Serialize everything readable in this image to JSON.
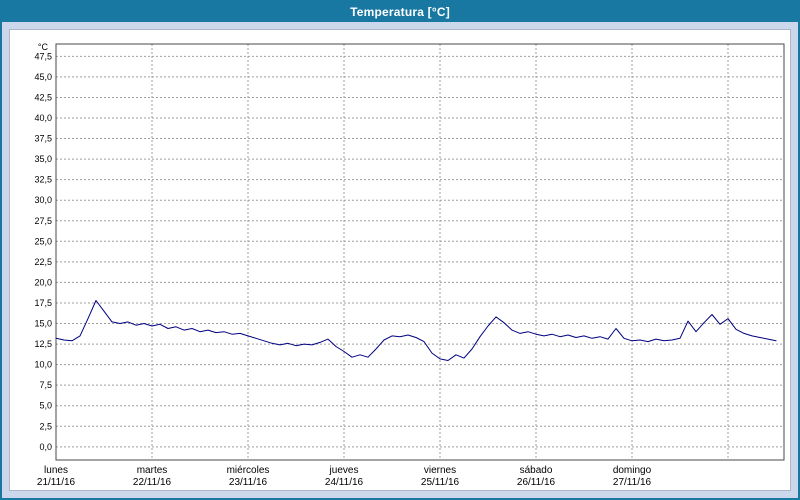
{
  "window": {
    "title": "Temperatura [°C]"
  },
  "colors": {
    "titlebar": "#1878a2",
    "frame_background": "#cbd7eb",
    "panel_background": "#ffffff",
    "grid": "#9f9f9f",
    "plot_border": "#4a4a4a",
    "line": "#00007f",
    "text": "#000000"
  },
  "chart_data": {
    "type": "line",
    "title": "Temperatura [°C]",
    "y_unit_label": "°C",
    "legend": "none",
    "grid": {
      "style": "dashed",
      "horizontal": true,
      "vertical": true
    },
    "y_axis": {
      "tick_min": 0,
      "tick_max": 47.5,
      "tick_step": 2.5,
      "ylim": [
        -1.6,
        49.0
      ],
      "decimal_separator": ","
    },
    "x_axis": {
      "day_length_hours": 24,
      "total_hours": 182,
      "days": [
        {
          "name": "lunes",
          "date": "21/11/16"
        },
        {
          "name": "martes",
          "date": "22/11/16"
        },
        {
          "name": "miércoles",
          "date": "23/11/16"
        },
        {
          "name": "jueves",
          "date": "24/11/16"
        },
        {
          "name": "viernes",
          "date": "25/11/16"
        },
        {
          "name": "sábado",
          "date": "26/11/16"
        },
        {
          "name": "domingo",
          "date": "27/11/16"
        }
      ]
    },
    "series": [
      {
        "name": "Temperatura",
        "unit": "°C",
        "color": "#00007f",
        "points": [
          [
            0,
            13.2
          ],
          [
            2,
            13.0
          ],
          [
            4,
            12.9
          ],
          [
            6,
            13.5
          ],
          [
            8,
            15.6
          ],
          [
            10,
            17.8
          ],
          [
            12,
            16.5
          ],
          [
            14,
            15.2
          ],
          [
            16,
            15.0
          ],
          [
            18,
            15.2
          ],
          [
            20,
            14.8
          ],
          [
            22,
            15.0
          ],
          [
            24,
            14.7
          ],
          [
            26,
            14.9
          ],
          [
            28,
            14.4
          ],
          [
            30,
            14.6
          ],
          [
            32,
            14.2
          ],
          [
            34,
            14.4
          ],
          [
            36,
            14.0
          ],
          [
            38,
            14.2
          ],
          [
            40,
            13.9
          ],
          [
            42,
            14.0
          ],
          [
            44,
            13.7
          ],
          [
            46,
            13.8
          ],
          [
            48,
            13.5
          ],
          [
            50,
            13.2
          ],
          [
            52,
            12.9
          ],
          [
            54,
            12.6
          ],
          [
            56,
            12.4
          ],
          [
            58,
            12.6
          ],
          [
            60,
            12.3
          ],
          [
            62,
            12.5
          ],
          [
            64,
            12.4
          ],
          [
            66,
            12.7
          ],
          [
            68,
            13.1
          ],
          [
            70,
            12.2
          ],
          [
            72,
            11.6
          ],
          [
            74,
            10.9
          ],
          [
            76,
            11.2
          ],
          [
            78,
            10.9
          ],
          [
            80,
            11.9
          ],
          [
            82,
            13.0
          ],
          [
            84,
            13.5
          ],
          [
            86,
            13.4
          ],
          [
            88,
            13.6
          ],
          [
            90,
            13.3
          ],
          [
            92,
            12.8
          ],
          [
            94,
            11.4
          ],
          [
            96,
            10.7
          ],
          [
            98,
            10.5
          ],
          [
            100,
            11.2
          ],
          [
            102,
            10.8
          ],
          [
            104,
            11.9
          ],
          [
            106,
            13.4
          ],
          [
            108,
            14.7
          ],
          [
            110,
            15.8
          ],
          [
            112,
            15.1
          ],
          [
            114,
            14.2
          ],
          [
            116,
            13.8
          ],
          [
            118,
            14.0
          ],
          [
            120,
            13.7
          ],
          [
            122,
            13.5
          ],
          [
            124,
            13.7
          ],
          [
            126,
            13.4
          ],
          [
            128,
            13.6
          ],
          [
            130,
            13.3
          ],
          [
            132,
            13.5
          ],
          [
            134,
            13.2
          ],
          [
            136,
            13.4
          ],
          [
            138,
            13.1
          ],
          [
            140,
            14.4
          ],
          [
            142,
            13.2
          ],
          [
            144,
            12.9
          ],
          [
            146,
            13.0
          ],
          [
            148,
            12.8
          ],
          [
            150,
            13.1
          ],
          [
            152,
            12.9
          ],
          [
            154,
            13.0
          ],
          [
            156,
            13.2
          ],
          [
            158,
            15.3
          ],
          [
            160,
            14.0
          ],
          [
            162,
            15.1
          ],
          [
            164,
            16.1
          ],
          [
            166,
            14.9
          ],
          [
            168,
            15.6
          ],
          [
            170,
            14.3
          ],
          [
            172,
            13.8
          ],
          [
            174,
            13.5
          ],
          [
            176,
            13.3
          ],
          [
            178,
            13.1
          ],
          [
            180,
            12.9
          ]
        ]
      }
    ]
  }
}
